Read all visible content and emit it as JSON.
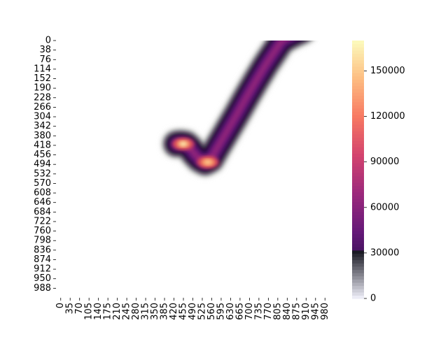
{
  "chart_data": {
    "type": "heatmap",
    "title": "",
    "xlabel": "",
    "ylabel": "",
    "x_range": [
      0,
      1000
    ],
    "y_range": [
      0,
      1000
    ],
    "y_axis_inverted": true,
    "x_ticks": [
      "0",
      "35",
      "70",
      "105",
      "140",
      "175",
      "210",
      "245",
      "280",
      "315",
      "350",
      "385",
      "420",
      "455",
      "490",
      "525",
      "560",
      "595",
      "630",
      "665",
      "700",
      "735",
      "770",
      "805",
      "840",
      "875",
      "910",
      "945",
      "980"
    ],
    "y_ticks": [
      "0",
      "38",
      "76",
      "114",
      "152",
      "190",
      "228",
      "266",
      "304",
      "342",
      "380",
      "418",
      "456",
      "494",
      "532",
      "570",
      "608",
      "646",
      "684",
      "722",
      "760",
      "798",
      "836",
      "874",
      "912",
      "950",
      "988"
    ],
    "colormap": "magma",
    "colorbar": {
      "range": [
        0,
        170000
      ],
      "ticks": [
        "0",
        "30000",
        "60000",
        "90000",
        "120000",
        "150000"
      ]
    },
    "density_path": [
      [
        440,
        402
      ],
      [
        455,
        400
      ],
      [
        475,
        403
      ],
      [
        490,
        418
      ],
      [
        505,
        440
      ],
      [
        525,
        462
      ],
      [
        545,
        473
      ],
      [
        565,
        462
      ],
      [
        590,
        415
      ],
      [
        625,
        352
      ],
      [
        660,
        288
      ],
      [
        695,
        222
      ],
      [
        730,
        158
      ],
      [
        765,
        96
      ],
      [
        800,
        40
      ],
      [
        825,
        0
      ],
      [
        860,
        -20
      ],
      [
        900,
        -40
      ]
    ],
    "peaks": [
      {
        "x": 465,
        "y": 402,
        "value": 165000
      },
      {
        "x": 555,
        "y": 473,
        "value": 150000
      }
    ],
    "grid": false,
    "legend": "colorbar right"
  }
}
